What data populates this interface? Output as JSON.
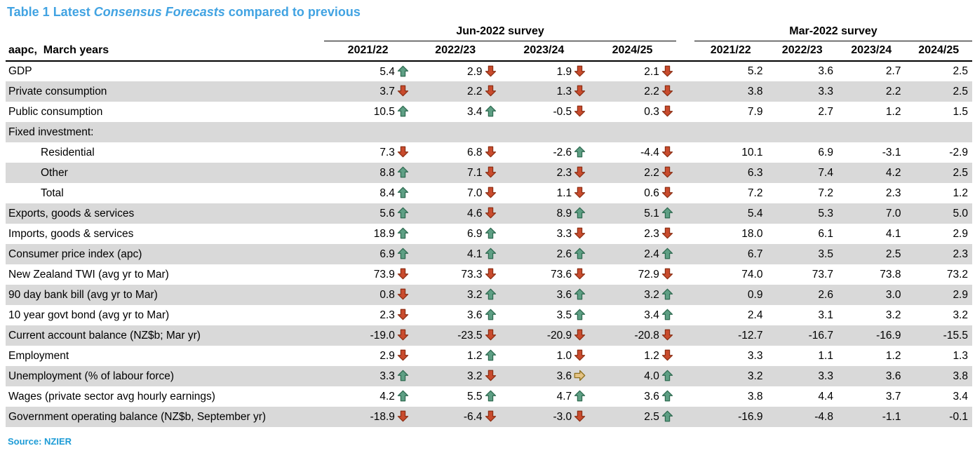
{
  "title": {
    "prefix": "Table 1 Latest ",
    "emphasis": "Consensus Forecasts",
    "suffix": " compared to previous"
  },
  "source": "Source: NZIER",
  "colors": {
    "title_blue": "#41A3E2",
    "source_blue": "#1C9BD6",
    "row_shade": "#D9D9D9",
    "up_arrow": {
      "fill": "#5E9F84",
      "stroke": "#2E6A50"
    },
    "down_arrow": {
      "fill": "#C94B2D",
      "stroke": "#8C2F14"
    },
    "flat_arrow": {
      "fill": "#E3C283",
      "stroke": "#8E701F"
    }
  },
  "table": {
    "row_header_label": "aapc,  March years",
    "groups": [
      {
        "label": "Jun-2022 survey",
        "columns": [
          "2021/22",
          "2022/23",
          "2023/24",
          "2024/25"
        ]
      },
      {
        "label": "Mar-2022 survey",
        "columns": [
          "2021/22",
          "2022/23",
          "2023/24",
          "2024/25"
        ]
      }
    ],
    "rows": [
      {
        "label": "GDP",
        "indent": false,
        "jun": [
          {
            "v": "5.4",
            "d": "up"
          },
          {
            "v": "2.9",
            "d": "down"
          },
          {
            "v": "1.9",
            "d": "down"
          },
          {
            "v": "2.1",
            "d": "down"
          }
        ],
        "mar": [
          "5.2",
          "3.6",
          "2.7",
          "2.5"
        ]
      },
      {
        "label": "Private consumption",
        "indent": false,
        "jun": [
          {
            "v": "3.7",
            "d": "down"
          },
          {
            "v": "2.2",
            "d": "down"
          },
          {
            "v": "1.3",
            "d": "down"
          },
          {
            "v": "2.2",
            "d": "down"
          }
        ],
        "mar": [
          "3.8",
          "3.3",
          "2.2",
          "2.5"
        ]
      },
      {
        "label": "Public consumption",
        "indent": false,
        "jun": [
          {
            "v": "10.5",
            "d": "up"
          },
          {
            "v": "3.4",
            "d": "up"
          },
          {
            "v": "-0.5",
            "d": "down"
          },
          {
            "v": "0.3",
            "d": "down"
          }
        ],
        "mar": [
          "7.9",
          "2.7",
          "1.2",
          "1.5"
        ]
      },
      {
        "label": "Fixed investment:",
        "indent": false,
        "jun": [
          null,
          null,
          null,
          null
        ],
        "mar": [
          "",
          "",
          "",
          ""
        ]
      },
      {
        "label": "Residential",
        "indent": true,
        "jun": [
          {
            "v": "7.3",
            "d": "down"
          },
          {
            "v": "6.8",
            "d": "down"
          },
          {
            "v": "-2.6",
            "d": "up"
          },
          {
            "v": "-4.4",
            "d": "down"
          }
        ],
        "mar": [
          "10.1",
          "6.9",
          "-3.1",
          "-2.9"
        ]
      },
      {
        "label": "Other",
        "indent": true,
        "jun": [
          {
            "v": "8.8",
            "d": "up"
          },
          {
            "v": "7.1",
            "d": "down"
          },
          {
            "v": "2.3",
            "d": "down"
          },
          {
            "v": "2.2",
            "d": "down"
          }
        ],
        "mar": [
          "6.3",
          "7.4",
          "4.2",
          "2.5"
        ]
      },
      {
        "label": "Total",
        "indent": true,
        "jun": [
          {
            "v": "8.4",
            "d": "up"
          },
          {
            "v": "7.0",
            "d": "down"
          },
          {
            "v": "1.1",
            "d": "down"
          },
          {
            "v": "0.6",
            "d": "down"
          }
        ],
        "mar": [
          "7.2",
          "7.2",
          "2.3",
          "1.2"
        ]
      },
      {
        "label": "Exports, goods & services",
        "indent": false,
        "jun": [
          {
            "v": "5.6",
            "d": "up"
          },
          {
            "v": "4.6",
            "d": "down"
          },
          {
            "v": "8.9",
            "d": "up"
          },
          {
            "v": "5.1",
            "d": "up"
          }
        ],
        "mar": [
          "5.4",
          "5.3",
          "7.0",
          "5.0"
        ]
      },
      {
        "label": "Imports, goods & services",
        "indent": false,
        "jun": [
          {
            "v": "18.9",
            "d": "up"
          },
          {
            "v": "6.9",
            "d": "up"
          },
          {
            "v": "3.3",
            "d": "down"
          },
          {
            "v": "2.3",
            "d": "down"
          }
        ],
        "mar": [
          "18.0",
          "6.1",
          "4.1",
          "2.9"
        ]
      },
      {
        "label": "Consumer price index (apc)",
        "indent": false,
        "jun": [
          {
            "v": "6.9",
            "d": "up"
          },
          {
            "v": "4.1",
            "d": "up"
          },
          {
            "v": "2.6",
            "d": "up"
          },
          {
            "v": "2.4",
            "d": "up"
          }
        ],
        "mar": [
          "6.7",
          "3.5",
          "2.5",
          "2.3"
        ]
      },
      {
        "label": "New Zealand TWI (avg yr to Mar)",
        "indent": false,
        "jun": [
          {
            "v": "73.9",
            "d": "down"
          },
          {
            "v": "73.3",
            "d": "down"
          },
          {
            "v": "73.6",
            "d": "down"
          },
          {
            "v": "72.9",
            "d": "down"
          }
        ],
        "mar": [
          "74.0",
          "73.7",
          "73.8",
          "73.2"
        ]
      },
      {
        "label": "90 day bank bill (avg yr to Mar)",
        "indent": false,
        "jun": [
          {
            "v": "0.8",
            "d": "down"
          },
          {
            "v": "3.2",
            "d": "up"
          },
          {
            "v": "3.6",
            "d": "up"
          },
          {
            "v": "3.2",
            "d": "up"
          }
        ],
        "mar": [
          "0.9",
          "2.6",
          "3.0",
          "2.9"
        ]
      },
      {
        "label": "10 year govt bond (avg yr to Mar)",
        "indent": false,
        "jun": [
          {
            "v": "2.3",
            "d": "down"
          },
          {
            "v": "3.6",
            "d": "up"
          },
          {
            "v": "3.5",
            "d": "up"
          },
          {
            "v": "3.4",
            "d": "up"
          }
        ],
        "mar": [
          "2.4",
          "3.1",
          "3.2",
          "3.2"
        ]
      },
      {
        "label": "Current account balance (NZ$b; Mar yr)",
        "indent": false,
        "jun": [
          {
            "v": "-19.0",
            "d": "down"
          },
          {
            "v": "-23.5",
            "d": "down"
          },
          {
            "v": "-20.9",
            "d": "down"
          },
          {
            "v": "-20.8",
            "d": "down"
          }
        ],
        "mar": [
          "-12.7",
          "-16.7",
          "-16.9",
          "-15.5"
        ]
      },
      {
        "label": "Employment",
        "indent": false,
        "jun": [
          {
            "v": "2.9",
            "d": "down"
          },
          {
            "v": "1.2",
            "d": "up"
          },
          {
            "v": "1.0",
            "d": "down"
          },
          {
            "v": "1.2",
            "d": "down"
          }
        ],
        "mar": [
          "3.3",
          "1.1",
          "1.2",
          "1.3"
        ]
      },
      {
        "label": "Unemployment (% of labour force)",
        "indent": false,
        "jun": [
          {
            "v": "3.3",
            "d": "up"
          },
          {
            "v": "3.2",
            "d": "down"
          },
          {
            "v": "3.6",
            "d": "flat"
          },
          {
            "v": "4.0",
            "d": "up"
          }
        ],
        "mar": [
          "3.2",
          "3.3",
          "3.6",
          "3.8"
        ]
      },
      {
        "label": "Wages (private sector avg hourly earnings)",
        "indent": false,
        "jun": [
          {
            "v": "4.2",
            "d": "up"
          },
          {
            "v": "5.5",
            "d": "up"
          },
          {
            "v": "4.7",
            "d": "up"
          },
          {
            "v": "3.6",
            "d": "up"
          }
        ],
        "mar": [
          "3.8",
          "4.4",
          "3.7",
          "3.4"
        ]
      },
      {
        "label": "Government operating balance (NZ$b, September yr)",
        "indent": false,
        "jun": [
          {
            "v": "-18.9",
            "d": "down"
          },
          {
            "v": "-6.4",
            "d": "down"
          },
          {
            "v": "-3.0",
            "d": "down"
          },
          {
            "v": "2.5",
            "d": "up"
          }
        ],
        "mar": [
          "-16.9",
          "-4.8",
          "-1.1",
          "-0.1"
        ]
      }
    ]
  }
}
